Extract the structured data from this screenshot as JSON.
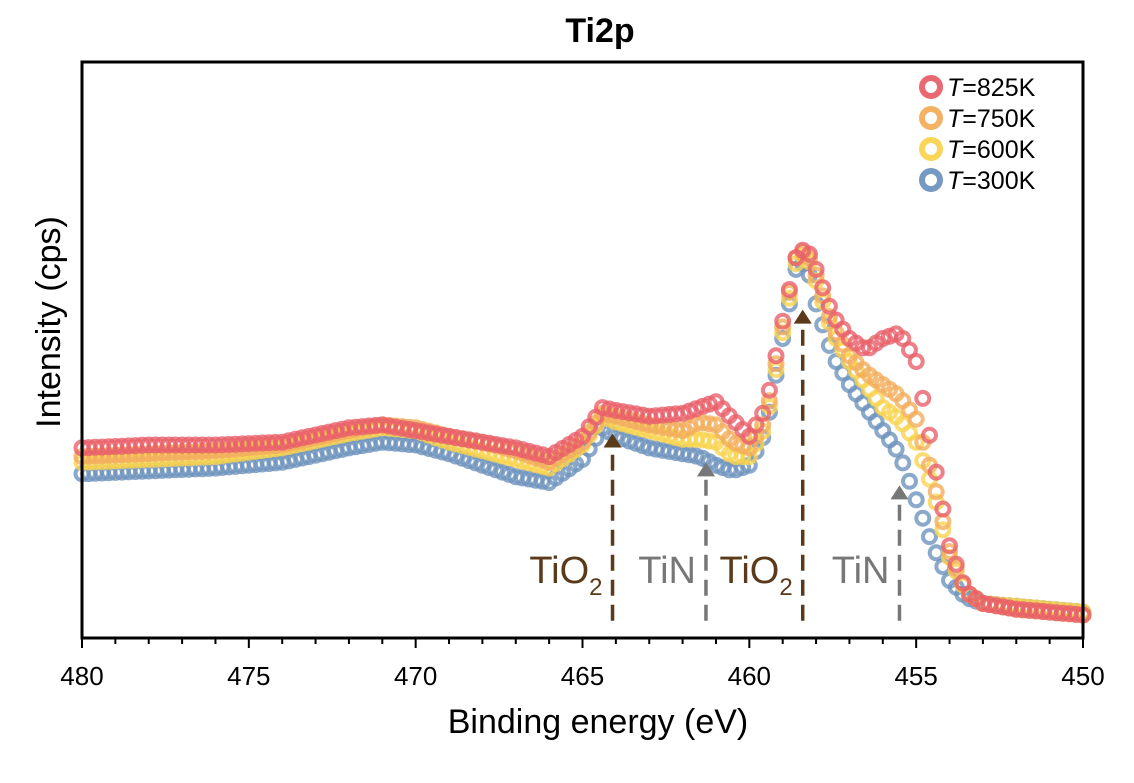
{
  "chart_data": {
    "type": "scatter",
    "title": "Ti2p",
    "xlabel": "Binding energy (eV)",
    "ylabel": "Intensity (cps)",
    "xlim": [
      480,
      450
    ],
    "ylim": [
      0,
      100
    ],
    "xticks": [
      480,
      475,
      470,
      465,
      460,
      455,
      450
    ],
    "xtick_labels": [
      "480",
      "475",
      "470",
      "465",
      "460",
      "455",
      "450"
    ],
    "grid": false,
    "legend_position": "top-right",
    "series": [
      {
        "name_italic": "T",
        "name_rest": "=825K",
        "color": "#e8606a",
        "x": [
          480,
          478,
          476,
          474,
          472,
          471,
          470,
          469,
          468,
          467,
          466,
          465,
          464.4,
          464,
          463,
          462,
          461.5,
          461,
          460.5,
          460,
          459.5,
          459,
          458.6,
          458.3,
          458,
          457.5,
          457,
          456.5,
          456,
          455.5,
          455,
          454.5,
          454,
          453.5,
          453,
          452,
          451,
          450
        ],
        "y": [
          33,
          33.5,
          33.5,
          34,
          36.5,
          37,
          36,
          35,
          34,
          33,
          31.5,
          35,
          40,
          39.5,
          38.5,
          39,
          40,
          41,
          38,
          35,
          40,
          55,
          66,
          68,
          64,
          56,
          52,
          50,
          52,
          53,
          48,
          32,
          16,
          8,
          6,
          5,
          4.5,
          4
        ]
      },
      {
        "name_italic": "T",
        "name_rest": "=750K",
        "color": "#f2ae5c",
        "x": [
          480,
          478,
          476,
          474,
          472,
          471,
          470,
          469,
          468,
          467,
          466,
          465,
          464.4,
          464,
          463,
          462,
          461.5,
          461,
          460.5,
          460,
          459.5,
          459,
          458.6,
          458.3,
          458,
          457.5,
          457,
          456.5,
          456,
          455.5,
          455,
          454.5,
          454,
          453.5,
          453,
          452,
          451,
          450
        ],
        "y": [
          31.5,
          32,
          32.5,
          33.5,
          36,
          37,
          36.5,
          35,
          34,
          32.5,
          30.5,
          34,
          39,
          38.5,
          37,
          36,
          37.5,
          37,
          34,
          33,
          38,
          54,
          66,
          67.5,
          63,
          54,
          49,
          46,
          44,
          42,
          38,
          28,
          15,
          8,
          6,
          5,
          4.5,
          4
        ]
      },
      {
        "name_italic": "T",
        "name_rest": "=600K",
        "color": "#f9d34f",
        "x": [
          480,
          478,
          476,
          474,
          472,
          471,
          470,
          469,
          468,
          467,
          466,
          465,
          464.4,
          464,
          463,
          462,
          461.5,
          461,
          460.5,
          460,
          459.5,
          459,
          458.6,
          458.3,
          458,
          457.5,
          457,
          456.5,
          456,
          455.5,
          455,
          454.5,
          454,
          453.5,
          453,
          452,
          451,
          450
        ],
        "y": [
          30.5,
          31,
          31.5,
          33,
          35.5,
          36.5,
          36,
          34,
          32.5,
          31,
          29.5,
          33.5,
          38.5,
          37.5,
          36,
          34.5,
          34.5,
          34,
          31.5,
          31.5,
          37,
          53,
          65,
          67,
          62,
          53,
          48,
          44,
          40,
          38,
          34,
          26,
          14,
          8,
          6,
          5.5,
          5,
          4.5
        ]
      },
      {
        "name_italic": "T",
        "name_rest": "=300K",
        "color": "#6e93bd",
        "x": [
          480,
          478,
          476,
          474,
          472,
          471,
          470,
          469,
          468,
          467,
          466,
          465,
          464.4,
          464,
          463,
          462,
          461.5,
          461,
          460.5,
          460,
          459.5,
          459,
          458.6,
          458.3,
          458,
          457.5,
          457,
          456.5,
          456,
          455.5,
          455,
          454.5,
          454,
          453.5,
          453,
          452,
          451,
          450
        ],
        "y": [
          28.5,
          29,
          29.5,
          30.5,
          33,
          34,
          33.5,
          32,
          30,
          28,
          27,
          31,
          36.5,
          35,
          33,
          32,
          31.5,
          30,
          29,
          30,
          36,
          52,
          64,
          65.5,
          58,
          49,
          44,
          40,
          36,
          32,
          24,
          16,
          10,
          7,
          6,
          5.5,
          5,
          4.5
        ]
      }
    ],
    "annotations": [
      {
        "species": "TiO",
        "subscript": "2",
        "x": 464.1,
        "arrow_from_y": 3,
        "arrow_to_y": 35.5,
        "color": "#5a3a1a",
        "label_side": "left"
      },
      {
        "species": "TiN",
        "subscript": "",
        "x": 461.3,
        "arrow_from_y": 3,
        "arrow_to_y": 30.5,
        "color": "#777777",
        "label_side": "left"
      },
      {
        "species": "TiO",
        "subscript": "2",
        "x": 458.4,
        "arrow_from_y": 3,
        "arrow_to_y": 57,
        "color": "#5a3a1a",
        "label_side": "left"
      },
      {
        "species": "TiN",
        "subscript": "",
        "x": 455.5,
        "arrow_from_y": 3,
        "arrow_to_y": 26.5,
        "color": "#777777",
        "label_side": "left"
      }
    ]
  }
}
